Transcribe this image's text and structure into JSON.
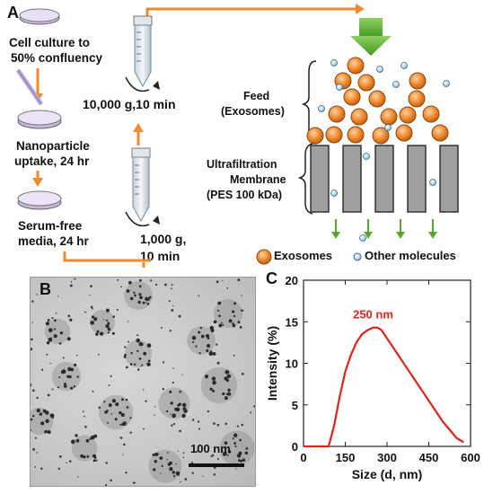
{
  "panel_a": {
    "letter": "A",
    "steps": {
      "culture": [
        "Cell culture to",
        "50% confluency"
      ],
      "uptake": [
        "Nanoparticle",
        "uptake, 24 hr"
      ],
      "serum": [
        "Serum-free",
        "media, 24 hr"
      ]
    },
    "spins": {
      "high": "10,000 g,10 min",
      "low": [
        "1,000 g,",
        "10 min"
      ]
    },
    "feed_label": [
      "Feed",
      "(Exosomes)"
    ],
    "membrane_label": [
      "Ultrafiltration",
      "Membrane",
      "(PES 100 kDa)"
    ],
    "legend": {
      "exosomes": "Exosomes",
      "other": "Other molecules"
    },
    "colors": {
      "arrow": "#f08a2c",
      "exosome": "#f0892e",
      "molecule": "#a9cde6",
      "membrane": "#a0a0a0",
      "flow": "#5aa832"
    }
  },
  "panel_b": {
    "letter": "B",
    "scale_label": "100 nm"
  },
  "panel_c": {
    "letter": "C",
    "chart_data": {
      "type": "line",
      "xlabel": "Size (d, nm)",
      "ylabel": "Intensity (%)",
      "xlim": [
        0,
        600
      ],
      "ylim": [
        0,
        20
      ],
      "xticks": [
        0,
        150,
        300,
        450,
        600
      ],
      "yticks": [
        0,
        5,
        10,
        15,
        20
      ],
      "annotation": "250 nm",
      "color": "#e0241b",
      "series": [
        {
          "x": [
            0,
            50,
            90,
            110,
            130,
            150,
            170,
            190,
            210,
            230,
            250,
            265,
            280,
            300,
            330,
            360,
            400,
            450,
            500,
            550,
            575
          ],
          "y": [
            0,
            0,
            0,
            2.5,
            6,
            9,
            11,
            12.5,
            13.5,
            14,
            14.3,
            14.3,
            14,
            13,
            11.5,
            10,
            8,
            5.5,
            3,
            1,
            0.5
          ]
        }
      ]
    }
  }
}
